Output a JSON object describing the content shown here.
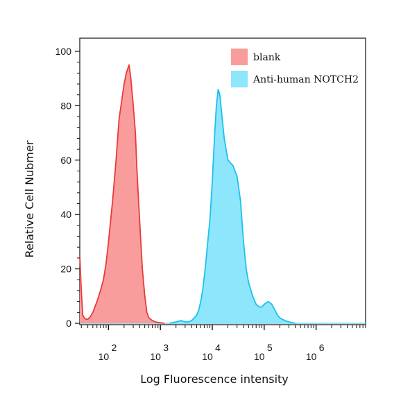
{
  "chart_data": {
    "type": "area",
    "xlabel": "Log Fluorescence intensity",
    "ylabel": "Relative Cell Nubmer",
    "x_scale": "log",
    "xlim": [
      28,
      9000000
    ],
    "ylim": [
      0,
      100
    ],
    "x_ticks": [
      {
        "value": 100,
        "base": "10",
        "exp": "2"
      },
      {
        "value": 1000,
        "base": "10",
        "exp": "3"
      },
      {
        "value": 10000,
        "base": "10",
        "exp": "4"
      },
      {
        "value": 100000,
        "base": "10",
        "exp": "5"
      },
      {
        "value": 1000000,
        "base": "10",
        "exp": "6"
      }
    ],
    "y_ticks": [
      "0",
      "20",
      "40",
      "60",
      "80",
      "100"
    ],
    "legend_position": "top-right",
    "series": [
      {
        "name": "blank",
        "fill": "#f99c9c",
        "stroke": "#e83a3a",
        "x": [
          28,
          30,
          32,
          34,
          37,
          40,
          45,
          50,
          60,
          70,
          80,
          90,
          100,
          120,
          140,
          160,
          180,
          200,
          220,
          250,
          270,
          300,
          330,
          350,
          380,
          420,
          450,
          500,
          550,
          600,
          700,
          800,
          900,
          1000,
          1100,
          1200
        ],
        "y": [
          25,
          12,
          3,
          2,
          1.5,
          1.5,
          2.5,
          4,
          8,
          12,
          16,
          22,
          30,
          45,
          60,
          75,
          82,
          88,
          92,
          95,
          90,
          80,
          70,
          58,
          45,
          30,
          20,
          10,
          4,
          2,
          1,
          0.5,
          0.3,
          0.2,
          0.1,
          0
        ]
      },
      {
        "name": "Anti-human NOTCH2",
        "fill": "#8de6fb",
        "stroke": "#1ec0ec",
        "x": [
          1500,
          2000,
          2500,
          3000,
          3500,
          4000,
          4500,
          5000,
          5500,
          6000,
          6500,
          7000,
          7500,
          8000,
          9000,
          10000,
          11000,
          12000,
          13000,
          14000,
          15000,
          17000,
          20000,
          25000,
          30000,
          35000,
          40000,
          45000,
          50000,
          60000,
          70000,
          80000,
          90000,
          100000,
          120000,
          140000,
          160000,
          180000,
          200000,
          250000,
          300000,
          400000
        ],
        "y": [
          0,
          0.5,
          1,
          0.5,
          0.5,
          1,
          2,
          3,
          5,
          8,
          12,
          17,
          22,
          28,
          38,
          52,
          68,
          80,
          86,
          84,
          78,
          68,
          60,
          58,
          54,
          45,
          30,
          20,
          15,
          10,
          7,
          6,
          6,
          7,
          8,
          7,
          5,
          3,
          2,
          1,
          0.5,
          0
        ]
      }
    ]
  }
}
